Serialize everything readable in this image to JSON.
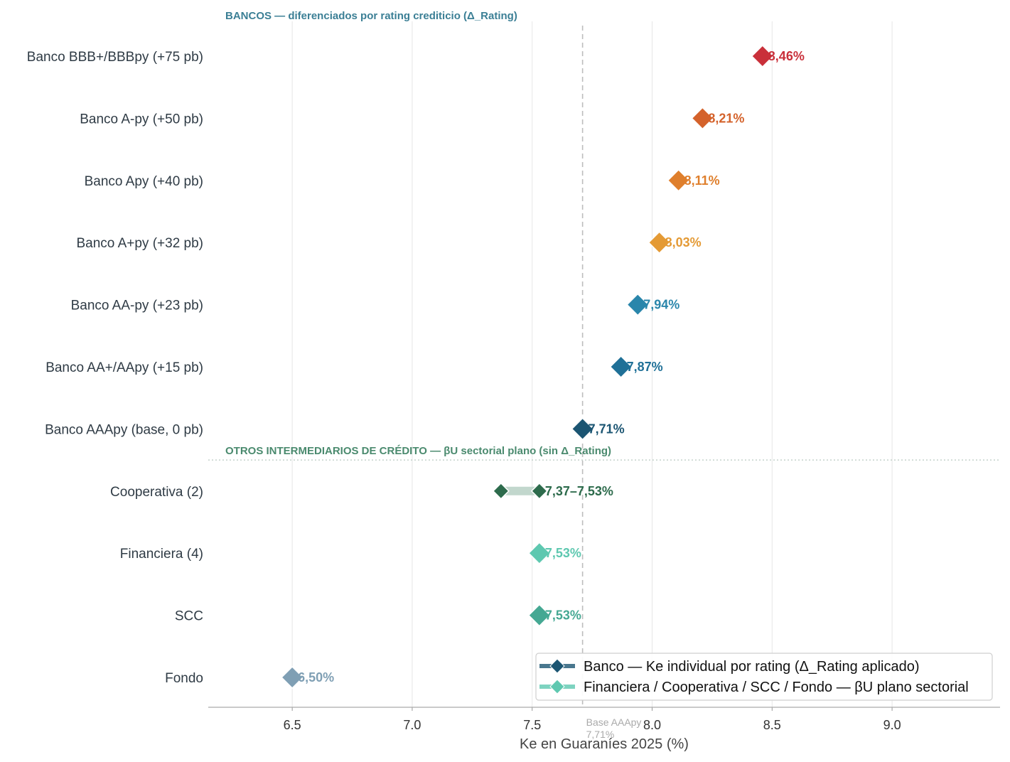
{
  "chart_data": {
    "type": "scatter",
    "xlabel": "Ke en Guaraníes 2025 (%)",
    "xlim": [
      6.15,
      9.45
    ],
    "xticks": [
      6.5,
      7.0,
      7.5,
      8.0,
      8.5,
      9.0
    ],
    "xtick_labels": [
      "6.5",
      "7.0",
      "7.5",
      "8.0",
      "8.5",
      "9.0"
    ],
    "grid": "vertical",
    "reference_line": {
      "value": 7.71,
      "label_line1": "Base AAApy",
      "label_line2": "7,71%"
    },
    "sections": [
      {
        "label": "BANCOS — diferenciados por rating crediticio (Δ_Rating)",
        "color": "#3b7f95"
      },
      {
        "label": "OTROS INTERMEDIARIOS DE CRÉDITO — βU sectorial plano (sin Δ_Rating)",
        "color": "#4a8a6e"
      }
    ],
    "categories": [
      "Banco  BBB+/BBBpy  (+75 pb)",
      "Banco  A-py  (+50 pb)",
      "Banco  Apy  (+40 pb)",
      "Banco  A+py  (+32 pb)",
      "Banco  AA-py  (+23 pb)",
      "Banco  AA+/AApy  (+15 pb)",
      "Banco  AAApy  (base, 0 pb)",
      "Cooperativa  (2)",
      "Financiera  (4)",
      "SCC",
      "Fondo"
    ],
    "points": [
      {
        "values": [
          8.46
        ],
        "label": "8,46%",
        "color": "#c9303a"
      },
      {
        "values": [
          8.21
        ],
        "label": "8,21%",
        "color": "#d4622b"
      },
      {
        "values": [
          8.11
        ],
        "label": "8,11%",
        "color": "#df7f2c"
      },
      {
        "values": [
          8.03
        ],
        "label": "8,03%",
        "color": "#e49a35"
      },
      {
        "values": [
          7.94
        ],
        "label": "7,94%",
        "color": "#2a86ab"
      },
      {
        "values": [
          7.87
        ],
        "label": "7,87%",
        "color": "#1f7097"
      },
      {
        "values": [
          7.71
        ],
        "label": "7,71%",
        "color": "#1b5572"
      },
      {
        "values": [
          7.37,
          7.53
        ],
        "label": "7,37–7,53%",
        "color": "#2d6b4c",
        "range_color": "#c2d7cd"
      },
      {
        "values": [
          7.53
        ],
        "label": "7,53%",
        "color": "#5ec8b0"
      },
      {
        "values": [
          7.53
        ],
        "label": "7,53%",
        "color": "#45a893"
      },
      {
        "values": [
          6.5
        ],
        "label": "6,50%",
        "color": "#7f9fb4"
      }
    ],
    "legend": {
      "position": "lower-right",
      "entries": [
        {
          "label": "Banco — Ke individual por rating (Δ_Rating aplicado)",
          "color": "#1b5572"
        },
        {
          "label": "Financiera / Cooperativa / SCC / Fondo — βU plano sectorial",
          "color": "#5ec8b0"
        }
      ]
    }
  }
}
